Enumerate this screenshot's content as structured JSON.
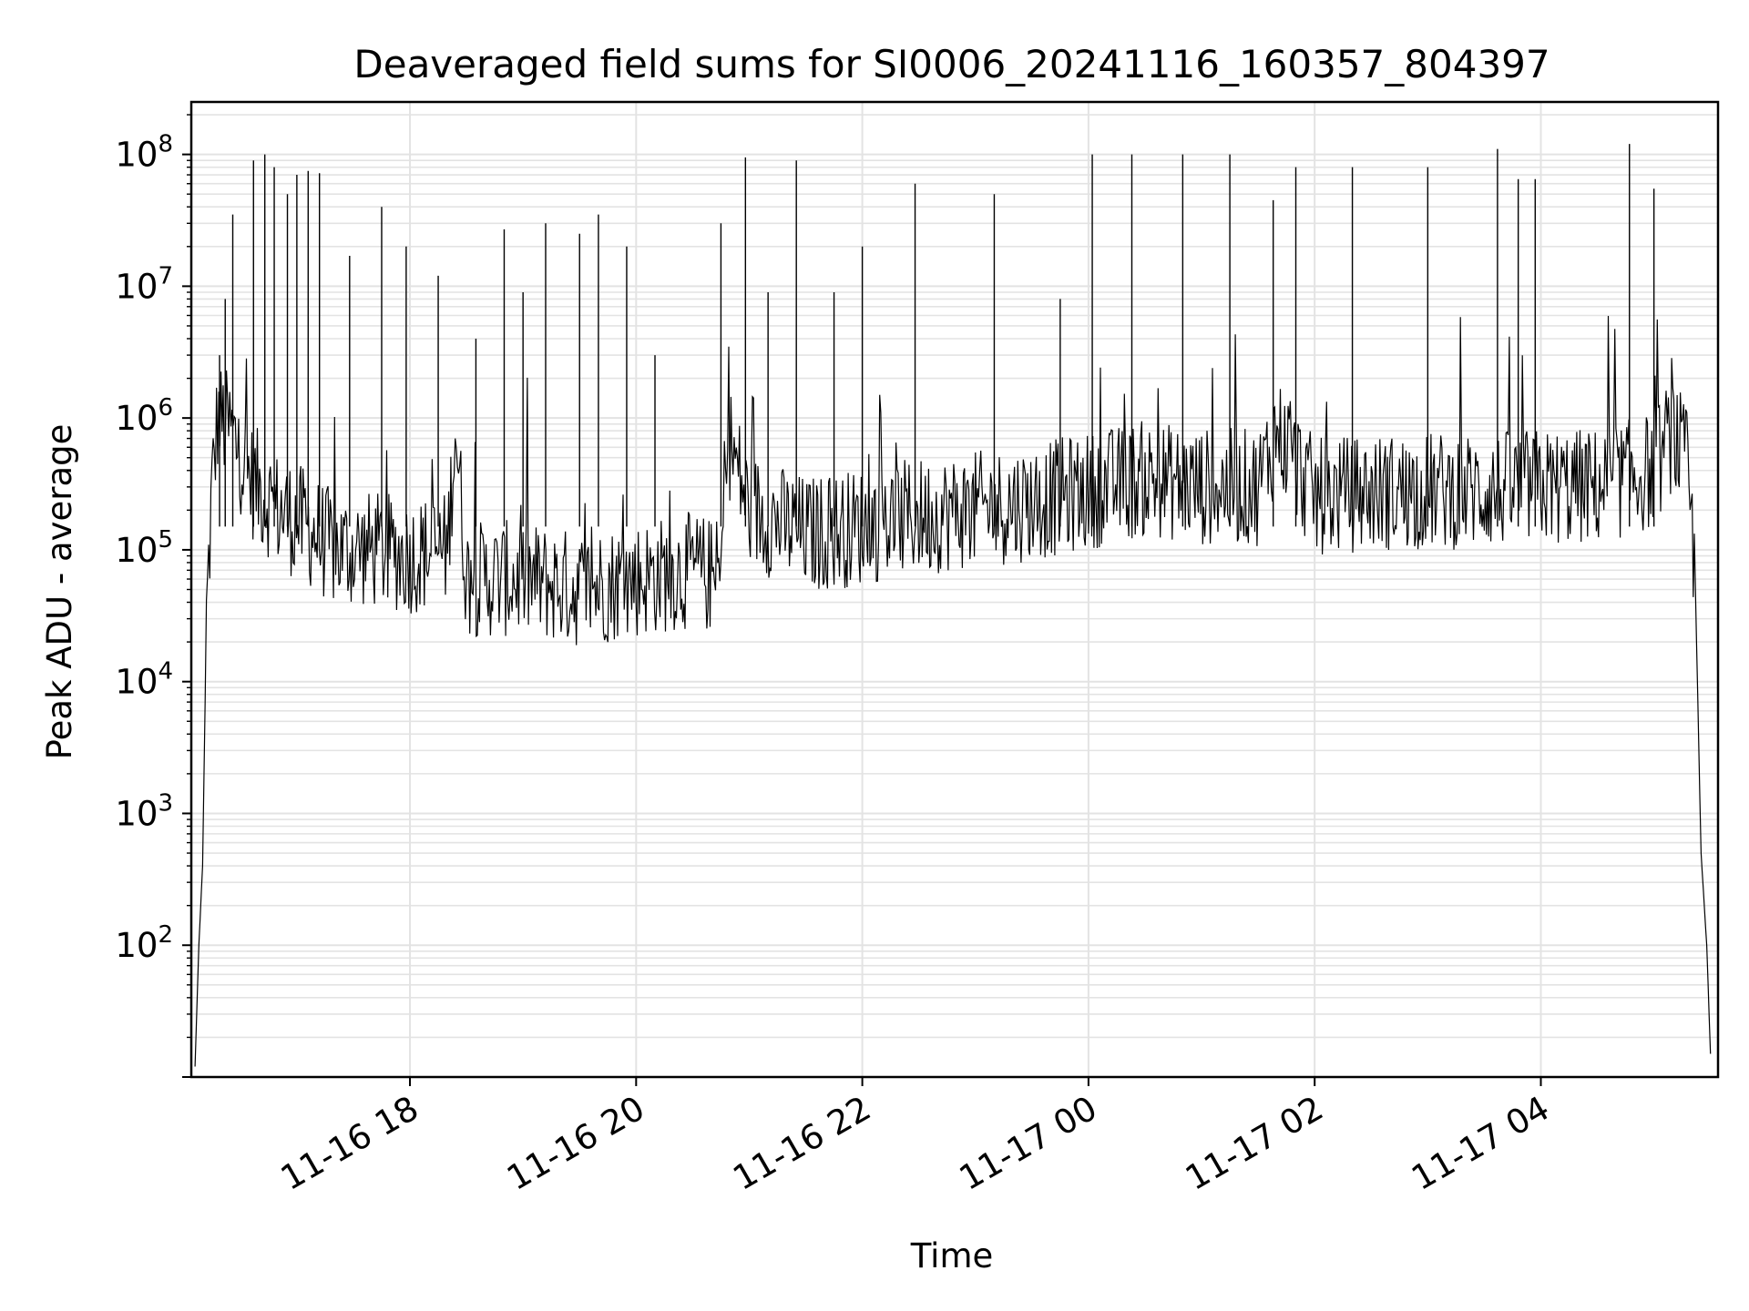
{
  "chart_data": {
    "type": "line",
    "title": "Deaveraged field sums for SI0006_20241116_160357_804397",
    "xlabel": "Time",
    "ylabel": "Peak ADU - average",
    "yscale": "log",
    "ylim": [
      10,
      250000000
    ],
    "xlim": [
      "2024-11-16 16:04",
      "2024-11-17 05:34"
    ],
    "grid": true,
    "line_color": "#000000",
    "x_ticks": [
      {
        "t": "2024-11-16 18:00",
        "label": "11-16 18"
      },
      {
        "t": "2024-11-16 20:00",
        "label": "11-16 20"
      },
      {
        "t": "2024-11-16 22:00",
        "label": "11-16 22"
      },
      {
        "t": "2024-11-17 00:00",
        "label": "11-17 00"
      },
      {
        "t": "2024-11-17 02:00",
        "label": "11-17 02"
      },
      {
        "t": "2024-11-17 04:00",
        "label": "11-17 04"
      }
    ],
    "y_ticks": [
      {
        "value": 100,
        "base": "10",
        "exp": "2"
      },
      {
        "value": 1000,
        "base": "10",
        "exp": "3"
      },
      {
        "value": 10000,
        "base": "10",
        "exp": "4"
      },
      {
        "value": 100000,
        "base": "10",
        "exp": "5"
      },
      {
        "value": 1000000,
        "base": "10",
        "exp": "6"
      },
      {
        "value": 10000000,
        "base": "10",
        "exp": "7"
      },
      {
        "value": 100000000,
        "base": "10",
        "exp": "8"
      }
    ],
    "series": [
      {
        "points": [
          [
            "2024-11-16 16:06",
            12
          ],
          [
            "2024-11-16 16:08",
            100
          ],
          [
            "2024-11-16 16:10",
            400
          ],
          [
            "2024-11-16 16:12",
            30000
          ],
          [
            "2024-11-16 16:15",
            300000
          ],
          [
            "2024-11-16 16:18",
            1000000
          ],
          [
            "2024-11-16 16:25",
            800000
          ],
          [
            "2024-11-16 16:35",
            350000
          ],
          [
            "2024-11-16 16:50",
            200000
          ],
          [
            "2024-11-16 17:05",
            150000
          ],
          [
            "2024-11-16 17:20",
            100000
          ],
          [
            "2024-11-16 17:40",
            100000
          ],
          [
            "2024-11-16 18:00",
            90000
          ],
          [
            "2024-11-16 18:20",
            100000
          ],
          [
            "2024-11-16 18:24",
            900000
          ],
          [
            "2024-11-16 18:30",
            60000
          ],
          [
            "2024-11-16 19:00",
            60000
          ],
          [
            "2024-11-16 19:30",
            50000
          ],
          [
            "2024-11-16 20:00",
            60000
          ],
          [
            "2024-11-16 20:30",
            70000
          ],
          [
            "2024-11-16 20:45",
            60000
          ],
          [
            "2024-11-16 20:48",
            800000
          ],
          [
            "2024-11-16 21:00",
            200000
          ],
          [
            "2024-11-16 21:30",
            130000
          ],
          [
            "2024-11-16 22:00",
            150000
          ],
          [
            "2024-11-16 22:30",
            180000
          ],
          [
            "2024-11-16 23:00",
            200000
          ],
          [
            "2024-11-16 23:30",
            230000
          ],
          [
            "2024-11-17 00:00",
            280000
          ],
          [
            "2024-11-17 00:30",
            350000
          ],
          [
            "2024-11-17 01:00",
            300000
          ],
          [
            "2024-11-17 01:30",
            300000
          ],
          [
            "2024-11-17 01:40",
            800000
          ],
          [
            "2024-11-17 02:00",
            250000
          ],
          [
            "2024-11-17 02:30",
            270000
          ],
          [
            "2024-11-17 03:00",
            280000
          ],
          [
            "2024-11-17 03:30",
            280000
          ],
          [
            "2024-11-17 04:00",
            300000
          ],
          [
            "2024-11-17 04:30",
            300000
          ],
          [
            "2024-11-17 05:00",
            400000
          ],
          [
            "2024-11-17 05:10",
            800000
          ],
          [
            "2024-11-17 05:18",
            400000
          ],
          [
            "2024-11-17 05:22",
            50000
          ],
          [
            "2024-11-17 05:25",
            500
          ],
          [
            "2024-11-17 05:28",
            100
          ],
          [
            "2024-11-17 05:30",
            15
          ]
        ],
        "spikes": [
          [
            "2024-11-16 16:19",
            3000000
          ],
          [
            "2024-11-16 16:22",
            8000000
          ],
          [
            "2024-11-16 16:26",
            35000000
          ],
          [
            "2024-11-16 16:37",
            90000000
          ],
          [
            "2024-11-16 16:43",
            100000000
          ],
          [
            "2024-11-16 16:48",
            80000000
          ],
          [
            "2024-11-16 16:55",
            50000000
          ],
          [
            "2024-11-16 17:00",
            70000000
          ],
          [
            "2024-11-16 17:06",
            75000000
          ],
          [
            "2024-11-16 17:12",
            72000000
          ],
          [
            "2024-11-16 17:28",
            17000000
          ],
          [
            "2024-11-16 17:45",
            40000000
          ],
          [
            "2024-11-16 17:58",
            20000000
          ],
          [
            "2024-11-16 18:15",
            12000000
          ],
          [
            "2024-11-16 18:35",
            4000000
          ],
          [
            "2024-11-16 18:50",
            27000000
          ],
          [
            "2024-11-16 19:00",
            9000000
          ],
          [
            "2024-11-16 19:12",
            30000000
          ],
          [
            "2024-11-16 19:30",
            25000000
          ],
          [
            "2024-11-16 19:40",
            35000000
          ],
          [
            "2024-11-16 19:55",
            20000000
          ],
          [
            "2024-11-16 20:10",
            3000000
          ],
          [
            "2024-11-16 20:45",
            30000000
          ],
          [
            "2024-11-16 20:58",
            95000000
          ],
          [
            "2024-11-16 21:10",
            9000000
          ],
          [
            "2024-11-16 21:25",
            90000000
          ],
          [
            "2024-11-16 21:45",
            9000000
          ],
          [
            "2024-11-16 22:00",
            20000000
          ],
          [
            "2024-11-16 22:28",
            60000000
          ],
          [
            "2024-11-16 23:10",
            50000000
          ],
          [
            "2024-11-16 23:45",
            8000000
          ],
          [
            "2024-11-17 00:02",
            100000000
          ],
          [
            "2024-11-17 00:23",
            100000000
          ],
          [
            "2024-11-17 00:50",
            100000000
          ],
          [
            "2024-11-17 01:15",
            100000000
          ],
          [
            "2024-11-17 01:38",
            45000000
          ],
          [
            "2024-11-17 01:50",
            80000000
          ],
          [
            "2024-11-17 02:20",
            80000000
          ],
          [
            "2024-11-17 03:00",
            80000000
          ],
          [
            "2024-11-17 03:37",
            110000000
          ],
          [
            "2024-11-17 03:48",
            65000000
          ],
          [
            "2024-11-17 03:57",
            65000000
          ],
          [
            "2024-11-17 04:47",
            120000000
          ],
          [
            "2024-11-17 05:00",
            55000000
          ]
        ]
      }
    ]
  }
}
